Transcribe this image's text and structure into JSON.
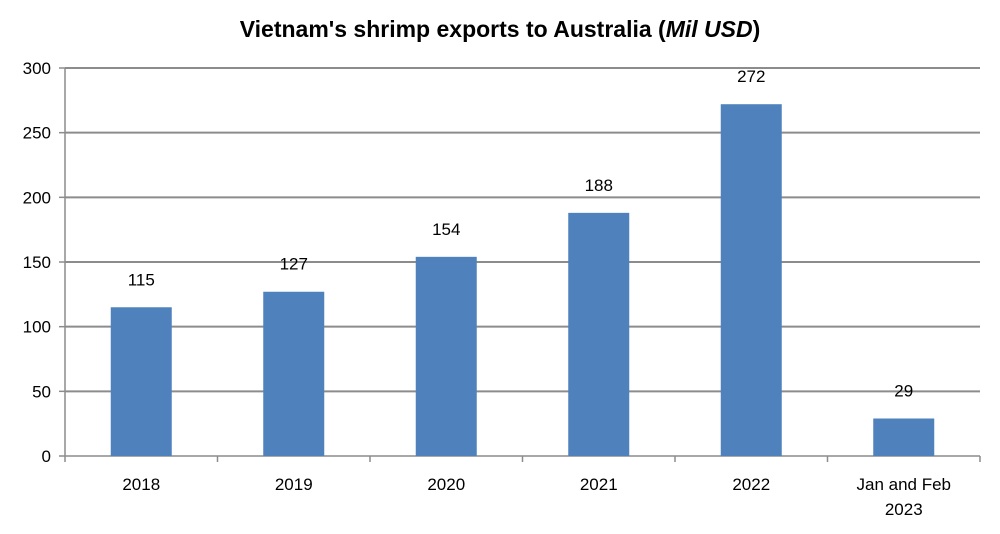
{
  "chart_data": {
    "type": "bar",
    "title": "Vietnam's shrimp exports to Australia (",
    "title_italic": "Mil USD",
    "title_suffix": ")",
    "xlabel": "",
    "ylabel": "",
    "categories": [
      [
        "2018"
      ],
      [
        "2019"
      ],
      [
        "2020"
      ],
      [
        "2021"
      ],
      [
        "2022"
      ],
      [
        "Jan and Feb",
        "2023"
      ]
    ],
    "values": [
      115,
      127,
      154,
      188,
      272,
      29
    ],
    "ylim": [
      0,
      300
    ],
    "yticks": [
      0,
      50,
      100,
      150,
      200,
      250,
      300
    ],
    "grid": true,
    "legend": "none",
    "bar_color": "#4f81bd",
    "grid_color": "#8c8c8c"
  }
}
